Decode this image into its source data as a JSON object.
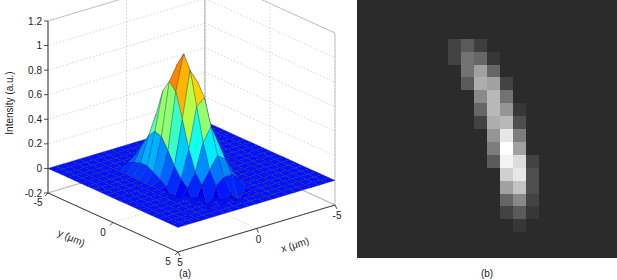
{
  "chart_data": [
    {
      "type": "surface3d",
      "caption": "(a)",
      "xlabel": "x (μm)",
      "ylabel": "y (μm)",
      "zlabel": "Intensity (a.u.)",
      "xlim": [
        -5,
        5
      ],
      "ylim": [
        -5,
        5
      ],
      "zlim": [
        -0.2,
        1.2
      ],
      "xticks": [
        -5,
        0,
        5
      ],
      "yticks": [
        -5,
        0,
        5
      ],
      "zticks": [
        -0.2,
        0,
        0.2,
        0.4,
        0.6,
        0.8,
        1,
        1.2
      ],
      "grid": true,
      "x": [
        -5,
        -4.5,
        -4,
        -3.5,
        -3,
        -2.5,
        -2,
        -1.5,
        -1,
        -0.5,
        0,
        0.5,
        1,
        1.5,
        2,
        2.5,
        3,
        3.5,
        4,
        4.5,
        5
      ],
      "y": [
        -5,
        -4.5,
        -4,
        -3.5,
        -3,
        -2.5,
        -2,
        -1.5,
        -1,
        -0.5,
        0,
        0.5,
        1,
        1.5,
        2,
        2.5,
        3,
        3.5,
        4,
        4.5,
        5
      ],
      "z": [
        [
          0,
          0,
          0,
          0,
          0,
          0,
          0,
          0,
          0,
          0,
          0,
          0,
          0,
          0,
          0,
          0,
          0,
          0,
          0,
          0,
          0
        ],
        [
          0,
          0,
          0,
          0,
          0,
          0,
          0,
          0,
          0,
          0,
          0,
          0,
          0,
          0,
          0,
          0,
          0,
          0,
          0,
          0,
          0
        ],
        [
          0,
          0,
          0,
          0,
          0,
          0,
          0,
          0,
          0,
          0,
          0,
          0,
          0,
          0,
          0,
          0,
          0,
          0,
          0,
          0,
          0
        ],
        [
          0,
          0,
          0,
          0,
          0,
          0,
          0,
          0,
          0,
          0,
          0,
          0,
          0,
          0,
          0,
          0,
          0,
          0,
          0,
          0,
          0
        ],
        [
          0,
          0,
          0,
          0,
          0,
          0,
          0,
          0,
          0,
          0,
          0,
          0,
          0,
          0,
          0,
          0,
          0,
          0,
          0,
          0,
          0
        ],
        [
          0,
          0,
          0,
          0,
          0,
          0,
          0,
          0,
          0,
          0,
          0,
          0.05,
          0.1,
          0.1,
          0.05,
          0,
          0,
          0,
          0,
          0,
          0
        ],
        [
          0,
          0,
          0,
          0,
          0,
          0,
          0,
          0,
          0,
          0,
          0.05,
          0.15,
          0.25,
          0.2,
          0.08,
          0,
          0,
          0,
          0,
          0,
          0
        ],
        [
          0,
          0,
          0,
          0,
          0,
          0,
          0,
          0,
          0,
          0.02,
          0.13,
          0.35,
          0.46,
          0.3,
          0.1,
          0,
          0,
          0,
          0,
          0,
          0
        ],
        [
          0,
          0,
          0,
          0,
          0,
          0,
          0,
          0,
          0,
          0.07,
          0.29,
          0.62,
          0.67,
          0.36,
          0.1,
          0,
          0,
          0,
          0,
          0,
          0
        ],
        [
          0,
          0,
          0,
          0,
          0,
          0,
          0,
          0,
          0,
          0.15,
          0.51,
          0.89,
          0.77,
          0.34,
          0.07,
          0,
          0,
          0,
          0,
          0,
          0
        ],
        [
          0,
          0,
          0,
          0,
          0,
          0,
          0,
          0,
          0.04,
          0.25,
          0.71,
          1,
          0.71,
          0.25,
          0.04,
          0,
          0,
          0,
          0,
          0,
          0
        ],
        [
          0,
          0,
          0,
          0,
          0,
          0,
          0,
          0,
          0.07,
          0.34,
          0.77,
          0.89,
          0.51,
          0.15,
          0,
          0,
          0,
          0,
          0,
          0,
          0
        ],
        [
          0,
          0,
          0,
          0,
          0,
          0,
          0,
          0,
          0.1,
          0.36,
          0.67,
          0.62,
          0.29,
          0.07,
          -0.09,
          0,
          0,
          0,
          0,
          0,
          0
        ],
        [
          0,
          0,
          0,
          0,
          0,
          0,
          0,
          0,
          0.1,
          0.3,
          0.46,
          0.35,
          0.13,
          0.02,
          -0.07,
          0,
          0,
          0,
          0,
          0,
          0
        ],
        [
          0,
          0,
          0,
          0,
          0,
          0,
          0,
          0,
          0.08,
          0.2,
          0.25,
          0.15,
          0.05,
          -0.1,
          0,
          0,
          0,
          0,
          0,
          0,
          0
        ],
        [
          0,
          0,
          0,
          0,
          0,
          0,
          0,
          0,
          0.05,
          0.1,
          0.1,
          0.05,
          -0.15,
          0,
          0,
          0,
          0,
          0,
          0,
          0,
          0
        ],
        [
          0,
          0,
          0,
          0,
          0,
          0,
          0,
          0,
          0,
          -0.08,
          0,
          -0.12,
          0,
          -0.05,
          0,
          0,
          0,
          0,
          0,
          0,
          0
        ],
        [
          0,
          0,
          0,
          0,
          0,
          0,
          0,
          0,
          0,
          0,
          -0.06,
          0,
          0,
          0,
          0,
          0,
          0,
          0,
          0,
          0,
          0
        ],
        [
          0,
          0,
          0,
          0,
          0,
          0,
          0,
          0,
          0,
          0,
          0,
          0,
          0,
          0,
          0,
          0,
          0,
          0,
          0,
          0,
          0
        ],
        [
          0,
          0,
          0,
          0,
          0,
          0,
          0,
          0,
          0,
          0,
          0,
          0,
          0,
          0,
          0,
          0,
          0,
          0,
          0,
          0,
          0
        ],
        [
          0,
          0,
          0,
          0,
          0,
          0,
          0,
          0,
          0,
          0,
          0,
          0,
          0,
          0,
          0,
          0,
          0,
          0,
          0,
          0,
          0
        ]
      ]
    },
    {
      "type": "image",
      "caption": "(b)",
      "cells": [
        [
          0,
          0,
          0,
          0,
          0,
          0,
          0,
          0,
          0,
          0,
          0,
          0,
          0,
          0,
          0,
          0,
          0,
          0,
          0,
          0
        ],
        [
          0,
          0,
          0,
          0,
          0,
          0,
          0,
          0,
          0,
          0,
          0,
          0,
          0,
          0,
          0,
          0,
          0,
          0,
          0,
          0
        ],
        [
          0,
          0,
          0,
          0,
          0,
          0,
          0,
          0,
          0,
          0,
          0,
          0,
          0,
          0,
          0,
          0,
          0,
          0,
          0,
          0
        ],
        [
          0,
          0,
          0,
          0,
          0,
          0,
          0,
          0.1,
          0.2,
          0.08,
          0,
          0,
          0,
          0,
          0,
          0,
          0,
          0,
          0,
          0
        ],
        [
          0,
          0,
          0,
          0,
          0,
          0,
          0,
          0.1,
          0.3,
          0.25,
          0.05,
          0,
          0,
          0,
          0,
          0,
          0,
          0,
          0,
          0
        ],
        [
          0,
          0,
          0,
          0,
          0,
          0,
          0,
          0,
          0.3,
          0.5,
          0.25,
          0,
          0,
          0,
          0,
          0,
          0,
          0,
          0,
          0
        ],
        [
          0,
          0,
          0,
          0,
          0,
          0,
          0,
          0,
          0.2,
          0.55,
          0.5,
          0.1,
          0,
          0,
          0,
          0,
          0,
          0,
          0,
          0
        ],
        [
          0,
          0,
          0,
          0,
          0,
          0,
          0,
          0,
          0,
          0.4,
          0.6,
          0.3,
          0,
          0,
          0,
          0,
          0,
          0,
          0,
          0
        ],
        [
          0,
          0,
          0,
          0,
          0,
          0,
          0,
          0,
          0,
          0.25,
          0.6,
          0.45,
          0.05,
          0,
          0,
          0,
          0,
          0,
          0,
          0
        ],
        [
          0,
          0,
          0,
          0,
          0,
          0,
          0,
          0,
          0,
          0.1,
          0.55,
          0.6,
          0.15,
          0,
          0,
          0,
          0,
          0,
          0,
          0
        ],
        [
          0,
          0,
          0,
          0,
          0,
          0,
          0,
          0,
          0,
          0,
          0.45,
          0.8,
          0.35,
          0,
          0,
          0,
          0,
          0,
          0,
          0
        ],
        [
          0,
          0,
          0,
          0,
          0,
          0,
          0,
          0,
          0,
          0,
          0.35,
          0.9,
          0.5,
          0,
          0,
          0,
          0,
          0,
          0,
          0
        ],
        [
          0,
          0,
          0,
          0,
          0,
          0,
          0,
          0,
          0,
          0,
          0.2,
          0.85,
          0.75,
          0.1,
          0,
          0,
          0,
          0,
          0,
          0
        ],
        [
          0,
          0,
          0,
          0,
          0,
          0,
          0,
          0,
          0,
          0,
          0,
          0.7,
          0.8,
          0.15,
          0,
          0,
          0,
          0,
          0,
          0
        ],
        [
          0,
          0,
          0,
          0,
          0,
          0,
          0,
          0,
          0,
          0,
          0,
          0.5,
          0.65,
          0.15,
          0,
          0,
          0,
          0,
          0,
          0
        ],
        [
          0,
          0,
          0,
          0,
          0,
          0,
          0,
          0,
          0,
          0,
          0,
          0.25,
          0.4,
          0.1,
          0,
          0,
          0,
          0,
          0,
          0
        ],
        [
          0,
          0,
          0,
          0,
          0,
          0,
          0,
          0,
          0,
          0,
          0,
          0.1,
          0.2,
          0.05,
          0,
          0,
          0,
          0,
          0,
          0
        ],
        [
          0,
          0,
          0,
          0,
          0,
          0,
          0,
          0,
          0,
          0,
          0,
          0,
          0.05,
          0,
          0,
          0,
          0,
          0,
          0,
          0
        ],
        [
          0,
          0,
          0,
          0,
          0,
          0,
          0,
          0,
          0,
          0,
          0,
          0,
          0,
          0,
          0,
          0,
          0,
          0,
          0,
          0
        ],
        [
          0,
          0,
          0,
          0,
          0,
          0,
          0,
          0,
          0,
          0,
          0,
          0,
          0,
          0,
          0,
          0,
          0,
          0,
          0,
          0
        ]
      ]
    }
  ]
}
